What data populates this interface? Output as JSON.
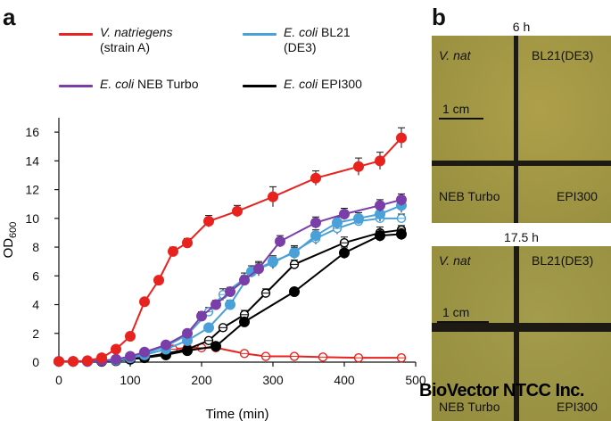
{
  "panel_a": {
    "letter": "a"
  },
  "panel_b": {
    "letter": "b"
  },
  "legend": {
    "items": [
      {
        "name_italic": "V. natriegens",
        "line2": "(strain A)",
        "color": "#e8231f"
      },
      {
        "name_italic": "E. coli",
        "name_rest": " BL21",
        "line2": "(DE3)",
        "color": "#4aa0d8"
      },
      {
        "name_italic": "E. coli",
        "name_rest": " NEB Turbo",
        "line2": "",
        "color": "#7a3ea8"
      },
      {
        "name_italic": "E. coli",
        "name_rest": " EPI300",
        "line2": "",
        "color": "#000000"
      }
    ]
  },
  "chart_data": {
    "type": "line",
    "xlabel": "Time (min)",
    "ylabel": "OD",
    "ylabel_sub": "600",
    "xlim": [
      0,
      500
    ],
    "ylim": [
      0,
      17
    ],
    "xticks": [
      0,
      100,
      200,
      300,
      400,
      500
    ],
    "yticks": [
      0,
      2,
      4,
      6,
      8,
      10,
      12,
      14,
      16
    ],
    "grid": false,
    "series": [
      {
        "name": "V. natriegens (strain A)",
        "color": "#e8231f",
        "marker": "filled",
        "x": [
          0,
          20,
          40,
          60,
          80,
          100,
          120,
          140,
          160,
          180,
          210,
          250,
          300,
          360,
          420,
          450,
          480
        ],
        "y": [
          0.05,
          0.05,
          0.1,
          0.3,
          0.9,
          1.8,
          4.2,
          5.7,
          7.7,
          8.3,
          9.8,
          10.5,
          11.5,
          12.8,
          13.6,
          14.0,
          15.6
        ],
        "err": [
          0,
          0,
          0,
          0,
          0,
          0.1,
          0.1,
          0.1,
          0.3,
          0.3,
          0.4,
          0.4,
          0.7,
          0.5,
          0.6,
          0.6,
          0.7
        ]
      },
      {
        "name": "V. natriegens (strain A) open",
        "color": "#e8231f",
        "marker": "open",
        "x": [
          160,
          180,
          200,
          220,
          260,
          290,
          330,
          370,
          420,
          480
        ],
        "y": [
          0.9,
          1.0,
          1.0,
          1.0,
          0.6,
          0.4,
          0.4,
          0.35,
          0.3,
          0.3
        ],
        "err": [
          0,
          0,
          0,
          0,
          0.1,
          0,
          0,
          0,
          0,
          0
        ]
      },
      {
        "name": "E. coli BL21 (DE3)",
        "color": "#4aa0d8",
        "marker": "filled",
        "x": [
          0,
          20,
          40,
          60,
          80,
          100,
          120,
          150,
          180,
          210,
          240,
          270,
          300,
          330,
          360,
          390,
          420,
          450,
          480
        ],
        "y": [
          0.05,
          0.05,
          0.05,
          0.1,
          0.15,
          0.3,
          0.5,
          0.9,
          1.5,
          2.4,
          4.0,
          6.3,
          7.0,
          7.6,
          8.8,
          9.7,
          10.0,
          10.3,
          10.9
        ],
        "err": [
          0,
          0,
          0,
          0,
          0,
          0,
          0,
          0,
          0,
          0,
          0.3,
          0.4,
          0.4,
          0.4,
          0.4,
          0.4,
          0.4,
          0.5,
          0.5
        ]
      },
      {
        "name": "E. coli BL21 (DE3) open",
        "color": "#4aa0d8",
        "marker": "open",
        "x": [
          0,
          20,
          40,
          60,
          80,
          100,
          120,
          150,
          180,
          210,
          230,
          260,
          280,
          300,
          330,
          360,
          390,
          420,
          450,
          480
        ],
        "y": [
          0.05,
          0.05,
          0.05,
          0.1,
          0.1,
          0.3,
          0.6,
          1.1,
          1.9,
          3.5,
          4.7,
          5.8,
          6.5,
          6.9,
          7.7,
          8.6,
          9.3,
          9.8,
          10.0,
          10.0
        ],
        "err": [
          0,
          0,
          0,
          0,
          0,
          0,
          0,
          0,
          0,
          0.3,
          0.4,
          0.4,
          0.4,
          0.4,
          0.4,
          0.4,
          0.4,
          0.3,
          0.3,
          0.3
        ]
      },
      {
        "name": "E. coli NEB Turbo",
        "color": "#7a3ea8",
        "marker": "filled",
        "x": [
          0,
          20,
          40,
          60,
          80,
          100,
          120,
          150,
          180,
          200,
          220,
          240,
          260,
          280,
          310,
          360,
          400,
          450,
          480
        ],
        "y": [
          0.05,
          0.05,
          0.05,
          0.1,
          0.2,
          0.4,
          0.7,
          1.2,
          2.0,
          3.2,
          4.0,
          4.9,
          5.7,
          6.5,
          8.4,
          9.7,
          10.3,
          10.9,
          11.3
        ],
        "err": [
          0,
          0,
          0,
          0,
          0,
          0,
          0,
          0,
          0,
          0.3,
          0.3,
          0.3,
          0.3,
          0.5,
          0.4,
          0.4,
          0.4,
          0.4,
          0.4
        ]
      },
      {
        "name": "E. coli EPI300",
        "color": "#000000",
        "marker": "filled",
        "x": [
          0,
          20,
          40,
          60,
          80,
          100,
          120,
          150,
          180,
          220,
          260,
          330,
          400,
          450,
          480
        ],
        "y": [
          0.05,
          0.05,
          0.05,
          0.05,
          0.1,
          0.2,
          0.3,
          0.5,
          0.8,
          1.1,
          2.8,
          4.9,
          7.6,
          8.8,
          8.9
        ],
        "err": [
          0,
          0,
          0,
          0,
          0,
          0,
          0,
          0,
          0,
          0,
          0,
          0.1,
          0.4,
          0.4,
          0.4
        ]
      },
      {
        "name": "E. coli EPI300 open",
        "color": "#000000",
        "marker": "open",
        "x": [
          0,
          20,
          40,
          60,
          80,
          100,
          120,
          150,
          180,
          210,
          230,
          260,
          290,
          330,
          400,
          450,
          480
        ],
        "y": [
          0.05,
          0.05,
          0.05,
          0.05,
          0.1,
          0.2,
          0.35,
          0.6,
          0.9,
          1.5,
          2.4,
          3.3,
          4.8,
          6.8,
          8.3,
          9.0,
          9.2
        ],
        "err": [
          0,
          0,
          0,
          0,
          0,
          0,
          0,
          0,
          0,
          0,
          0,
          0.3,
          0.3,
          0.3,
          0.4,
          0.4,
          0.3
        ]
      }
    ]
  },
  "plates": [
    {
      "time_label": "6 h",
      "quadrants": {
        "tl": "V. nat",
        "tr": "BL21(DE3)",
        "bl": "NEB Turbo",
        "br": "EPI300"
      },
      "scale_label": "1 cm",
      "bg": "#aea04a"
    },
    {
      "time_label": "17.5 h",
      "quadrants": {
        "tl": "V. nat",
        "tr": "BL21(DE3)",
        "bl": "NEB Turbo",
        "br": "EPI300"
      },
      "scale_label": "1 cm",
      "bg": "#a39c4c"
    }
  ],
  "watermark": "BioVector NTCC Inc."
}
